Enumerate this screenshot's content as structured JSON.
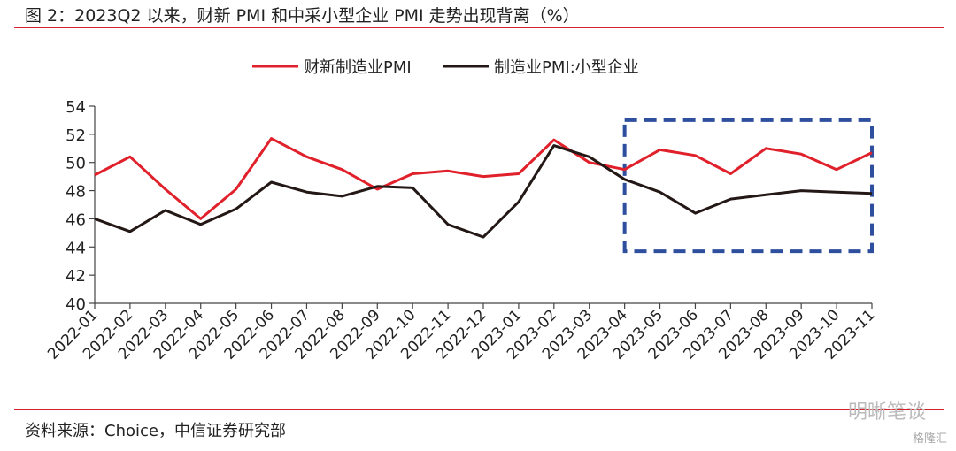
{
  "figure_title": "图 2：2023Q2 以来，财新 PMI 和中采小型企业 PMI 走势出现背离（%）",
  "source": "资料来源：Choice，中信证券研究部",
  "watermark": "明晰笔谈",
  "watermark_sub": "格隆汇",
  "chart_data": {
    "type": "line",
    "title": "",
    "xlabel": "",
    "ylabel": "",
    "ylim": [
      40,
      54
    ],
    "yticks": [
      40,
      42,
      44,
      46,
      48,
      50,
      52,
      54
    ],
    "grid": false,
    "legend_position": "top-center",
    "categories": [
      "2022-01",
      "2022-02",
      "2022-03",
      "2022-04",
      "2022-05",
      "2022-06",
      "2022-07",
      "2022-08",
      "2022-09",
      "2022-10",
      "2022-11",
      "2022-12",
      "2023-01",
      "2023-02",
      "2023-03",
      "2023-04",
      "2023-05",
      "2023-06",
      "2023-07",
      "2023-08",
      "2023-09",
      "2023-10",
      "2023-11"
    ],
    "series": [
      {
        "name": "财新制造业PMI",
        "color": "#e0202a",
        "values": [
          49.1,
          50.4,
          48.1,
          46.0,
          48.1,
          51.7,
          50.4,
          49.5,
          48.1,
          49.2,
          49.4,
          49.0,
          49.2,
          51.6,
          50.0,
          49.5,
          50.9,
          50.5,
          49.2,
          51.0,
          50.6,
          49.5,
          50.7
        ]
      },
      {
        "name": "制造业PMI:小型企业",
        "color": "#231815",
        "values": [
          46.0,
          45.1,
          46.6,
          45.6,
          46.7,
          48.6,
          47.9,
          47.6,
          48.3,
          48.2,
          45.6,
          44.7,
          47.2,
          51.2,
          50.4,
          48.8,
          47.9,
          46.4,
          47.4,
          47.7,
          48.0,
          47.9,
          47.8
        ]
      }
    ],
    "highlight_box": {
      "x_from": "2023-04",
      "x_to": "2023-11",
      "y_from": 43.7,
      "y_to": 53.0,
      "color": "#2e4e9e",
      "style": "dashed"
    }
  }
}
